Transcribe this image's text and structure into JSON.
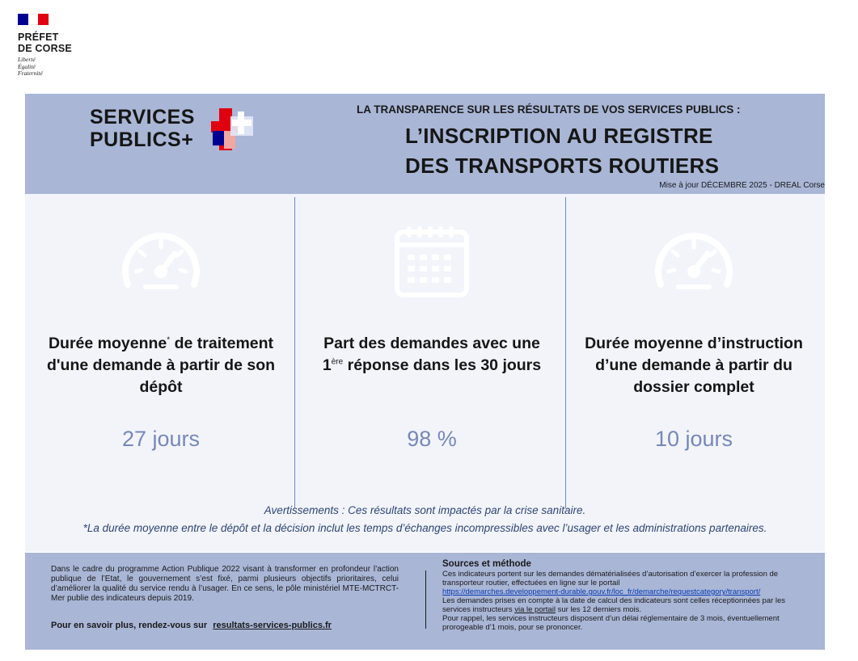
{
  "logo": {
    "line1": "PRÉFET",
    "line2": "DE CORSE",
    "motto1": "Liberté",
    "motto2": "Égalité",
    "motto3": "Fraternité",
    "flag_colors": [
      "#000091",
      "#ffffff",
      "#e1000f"
    ]
  },
  "header": {
    "brand_line1": "SERVICES",
    "brand_line2": "PUBLICS+",
    "kicker": "LA TRANSPARENCE SUR LES  RÉSULTATS DE VOS SERVICES PUBLICS :",
    "title_line1": "L’INSCRIPTION AU REGISTRE",
    "title_line2": "DES TRANSPORTS ROUTIERS",
    "updated": "Mise à jour DÉCEMBRE  2025 - DREAL Corse",
    "band_color": "#a9b6d6"
  },
  "indicators": [
    {
      "icon": "speedometer-icon",
      "label_before": "Durée moyenne",
      "label_sup": "*",
      "label_after": " de traitement d'une demande à partir de son dépôt",
      "value": "27 jours"
    },
    {
      "icon": "calendar-icon",
      "label_line1": "Part des demandes avec une",
      "label_num": "1",
      "label_sup": "ère",
      "label_after": " réponse dans les 30 jours",
      "value": "98 %"
    },
    {
      "icon": "speedometer-icon",
      "label": "Durée moyenne d’instruction d’une demande à partir du dossier complet",
      "value": "10 jours"
    }
  ],
  "warning": "Avertissements : Ces résultats sont impactés par la crise sanitaire.",
  "footnote": "*La durée moyenne entre le dépôt et la décision inclut les temps d’échanges incompressibles avec l’usager et les administrations partenaires.",
  "footer": {
    "intro": "Dans le cadre du programme Action Publique 2022 visant à transformer en profondeur l’action publique de l’Etat, le gouvernement s’est fixé, parmi plusieurs objectifs prioritaires, celui d’améliorer la qualité du service rendu à l’usager. En ce sens, le pôle ministériel MTE-MCTRCT-Mer publie des indicateurs depuis 2019.",
    "more_label": "Pour en savoir plus, rendez-vous sur",
    "more_link": "resultats-services-publics.fr",
    "sources_title": "Sources et méthode",
    "sources_p1": "Ces indicateurs portent sur les demandes dématérialisées d’autorisation d’exercer la profession de transporteur routier, effectuées en ligne sur le portail",
    "sources_url": "https://demarches.developpement-durable.gouv.fr/loc_fr/demarche/requestcategory/transport/",
    "sources_p2a": "Les demandes prises en compte à la date de calcul des indicateurs sont celles réceptionnées par les services instructeurs ",
    "sources_p2_link": "via le portail",
    "sources_p2b": " sur les 12 derniers mois.",
    "sources_p3": "Pour rappel, les services instructeurs disposent d’un délai réglementaire de 3 mois, éventuellement prorogeable d’1 mois, pour se prononcer."
  }
}
